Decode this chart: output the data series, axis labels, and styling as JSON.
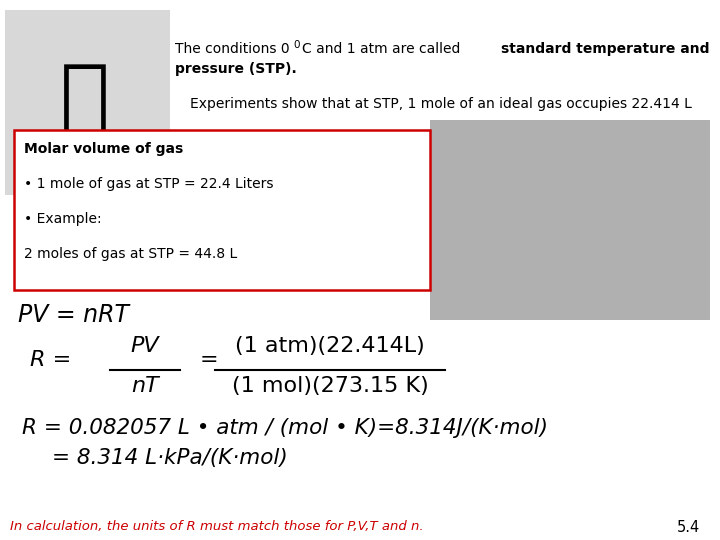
{
  "bg_color": "#ffffff",
  "text_color": "#000000",
  "footer_color": "#cc0000",
  "box_border_color": "#cc0000",
  "slide_number": "5.4",
  "footer": "In calculation, the units of R must match those for P,V,T and n.",
  "box_lines": [
    "Molar volume of gas",
    "• 1 mole of gas at STP = 22.4 Liters",
    "• Example:",
    "2 moles of gas at STP = 44.8 L"
  ],
  "experiments_line": "Experiments show that at STP, 1 mole of an ideal gas occupies 22.414 L",
  "r_frac2_num": "(1 atm)(22.414L)",
  "r_frac2_den": "(1 mol)(273.15 K)",
  "r_value_line1": "R = 0.082057 L • atm / (mol • K)=8.314J/(K·mol)",
  "r_value_line2": "= 8.314 L·kPa/(K·mol)"
}
